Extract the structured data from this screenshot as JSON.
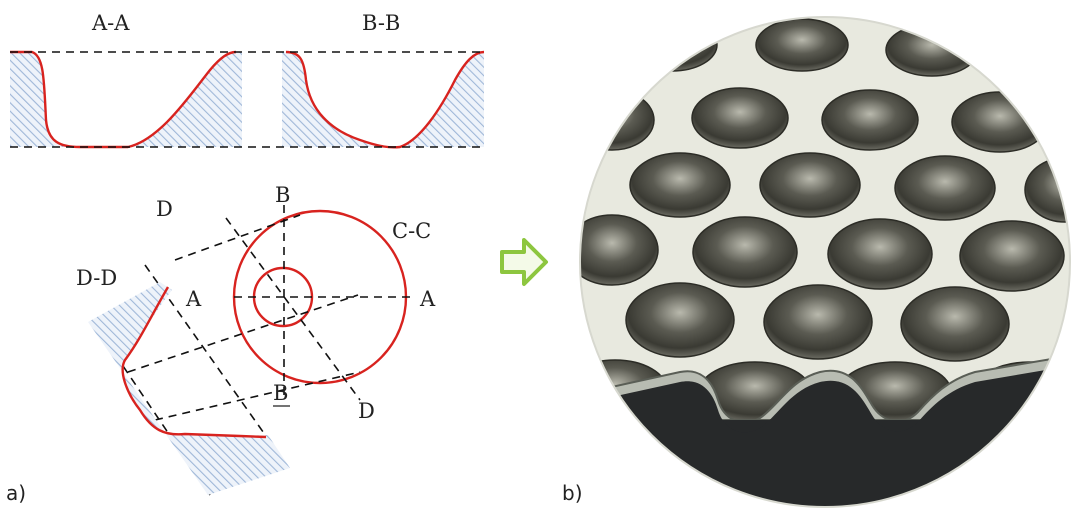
{
  "labels": {
    "section_aa": "A-A",
    "section_bb": "B-B",
    "section_cc": "C-C",
    "section_dd": "D-D",
    "d_top": "D",
    "d_bottom": "D",
    "b_top": "B",
    "b_bottom": "B",
    "a_left": "A",
    "a_right": "A",
    "panel_a": "a)",
    "panel_b": "b)"
  },
  "colors": {
    "profile": "#d8231f",
    "hatch": "#9fb7d8",
    "arrow": "#8dc63f",
    "plate": "#e8e9df"
  },
  "icons": {
    "arrow": "right-arrow-icon"
  }
}
